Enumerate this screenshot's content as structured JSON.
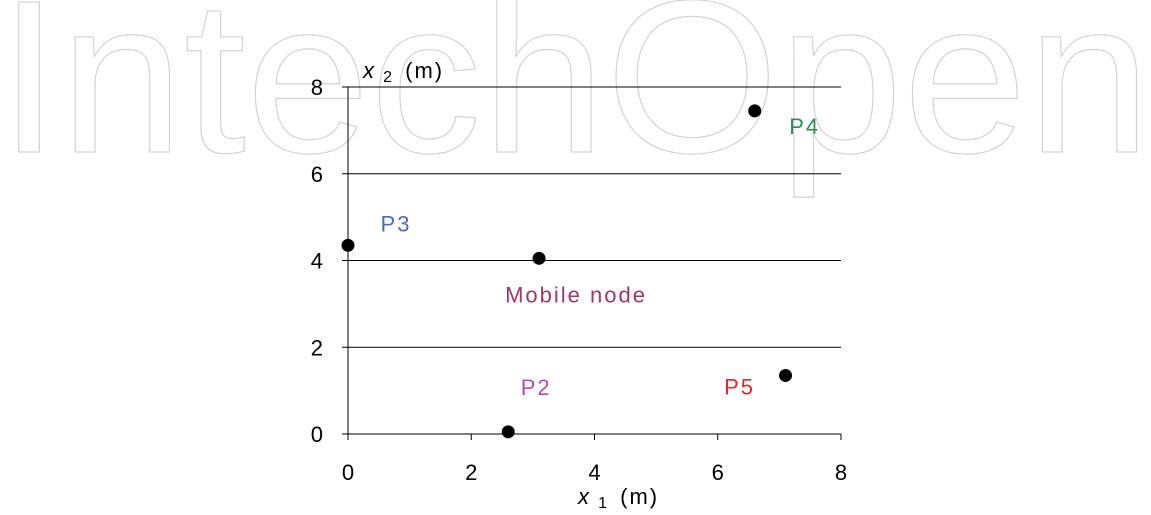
{
  "watermark_text": "IntechOpen",
  "chart_data": {
    "type": "scatter",
    "title": "",
    "xlabel": "x",
    "xlabel_sub": "1",
    "xlabel_unit": "(m)",
    "ylabel": "x",
    "ylabel_sub": "2",
    "ylabel_unit": "(m)",
    "xlim": [
      0,
      8
    ],
    "ylim": [
      0,
      8
    ],
    "x_ticks": [
      0,
      2,
      4,
      6,
      8
    ],
    "y_ticks": [
      0,
      2,
      4,
      6,
      8
    ],
    "grid": "horizontal",
    "points": [
      {
        "label": "P2",
        "x": 2.6,
        "y": 0.05,
        "color": "#b04fb0"
      },
      {
        "label": "P3",
        "x": 0.0,
        "y": 4.35,
        "color": "#4f6bb5"
      },
      {
        "label": "P4",
        "x": 6.6,
        "y": 7.45,
        "color": "#2e8b57"
      },
      {
        "label": "P5",
        "x": 7.1,
        "y": 1.35,
        "color": "#e8222e"
      },
      {
        "label": "Mobile node",
        "x": 3.1,
        "y": 4.05,
        "color": "#963a6a"
      }
    ]
  }
}
